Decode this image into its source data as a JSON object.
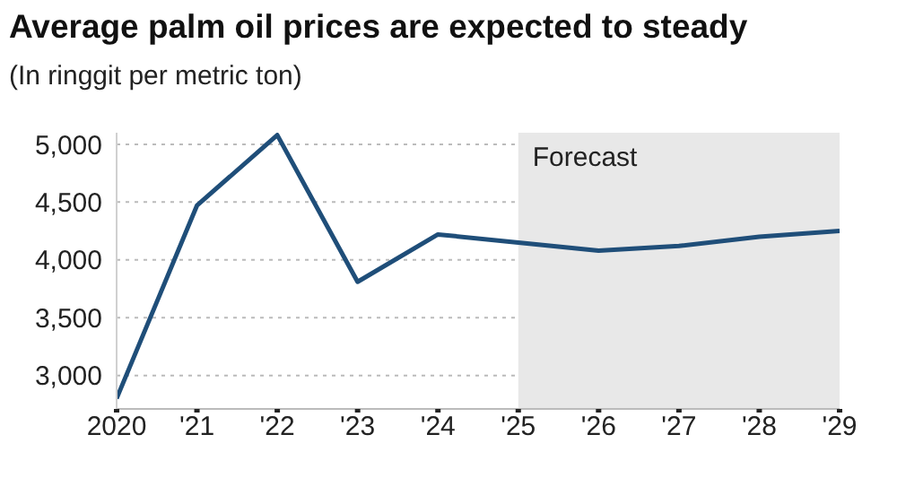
{
  "chart_data": {
    "type": "line",
    "title": "Average palm oil prices are expected to steady",
    "subtitle": "(In ringgit per metric ton)",
    "x": [
      2020,
      2021,
      2022,
      2023,
      2024,
      2025,
      2026,
      2027,
      2028,
      2029
    ],
    "series": [
      {
        "color": "#1f4e79",
        "values": [
          2800,
          4470,
          5080,
          3810,
          4220,
          4150,
          4080,
          4120,
          4200,
          4250
        ]
      }
    ],
    "xlim": [
      2020,
      2029
    ],
    "xticks": [
      2020,
      {
        "value": 2021,
        "label": "'21"
      },
      {
        "value": 2022,
        "label": "'22"
      },
      {
        "value": 2023,
        "label": "'23"
      },
      {
        "value": 2024,
        "label": "'24"
      },
      {
        "value": 2025,
        "label": "'25"
      },
      {
        "value": 2026,
        "label": "'26"
      },
      {
        "value": 2027,
        "label": "'27"
      },
      {
        "value": 2028,
        "label": "'28"
      },
      {
        "value": 2029,
        "label": "'29"
      }
    ],
    "ylim": [
      2710,
      5100
    ],
    "yticks": [
      {
        "value": 3000,
        "label": "3,000"
      },
      {
        "value": 3500,
        "label": "3,500"
      },
      {
        "value": 4000,
        "label": "4,000"
      },
      {
        "value": 4500,
        "label": "4,500"
      },
      {
        "value": 5000,
        "label": "5,000"
      }
    ],
    "grid": "y",
    "marker": "none",
    "line_style": "solid",
    "legend": false,
    "bands": [
      {
        "axis": "x",
        "from": 2025,
        "to": 2029,
        "label": "Forecast",
        "color": "#e8e8e8"
      }
    ]
  }
}
